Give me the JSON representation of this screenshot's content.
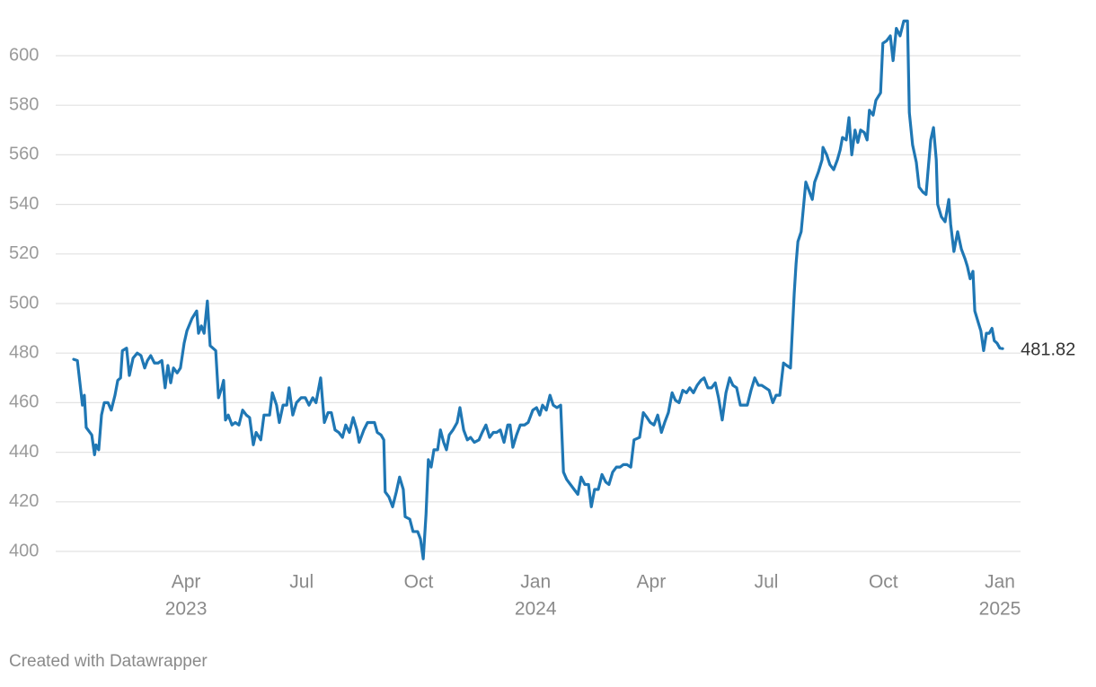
{
  "chart_data": {
    "type": "line",
    "x": [
      2023.005,
      2023.013,
      2023.024,
      2023.028,
      2023.032,
      2023.044,
      2023.05,
      2023.053,
      2023.059,
      2023.065,
      2023.071,
      2023.079,
      2023.086,
      2023.094,
      2023.1,
      2023.106,
      2023.11,
      2023.119,
      2023.125,
      2023.133,
      2023.142,
      2023.15,
      2023.158,
      2023.164,
      2023.171,
      2023.179,
      2023.187,
      2023.195,
      2023.202,
      2023.208,
      2023.214,
      2023.22,
      2023.228,
      2023.235,
      2023.243,
      2023.249,
      2023.26,
      2023.27,
      2023.274,
      2023.28,
      2023.286,
      2023.293,
      2023.299,
      2023.311,
      2023.317,
      2023.324,
      2023.328,
      2023.332,
      2023.338,
      2023.346,
      2023.353,
      2023.361,
      2023.369,
      2023.377,
      2023.384,
      2023.392,
      2023.398,
      2023.408,
      2023.415,
      2023.427,
      2023.433,
      2023.442,
      2023.448,
      2023.456,
      2023.464,
      2023.469,
      2023.477,
      2023.485,
      2023.495,
      2023.504,
      2023.512,
      2023.52,
      2023.527,
      2023.537,
      2023.545,
      2023.553,
      2023.56,
      2023.568,
      2023.576,
      2023.584,
      2023.591,
      2023.599,
      2023.607,
      2023.615,
      2023.62,
      2023.63,
      2023.638,
      2023.646,
      2023.653,
      2023.659,
      2023.667,
      2023.673,
      2023.676,
      2023.684,
      2023.692,
      2023.7,
      2023.707,
      2023.715,
      2023.719,
      2023.729,
      2023.736,
      2023.746,
      2023.752,
      2023.758,
      2023.764,
      2023.769,
      2023.775,
      2023.781,
      2023.789,
      2023.795,
      2023.802,
      2023.808,
      2023.814,
      2023.822,
      2023.831,
      2023.837,
      2023.845,
      2023.853,
      2023.86,
      2023.868,
      2023.878,
      2023.885,
      2023.893,
      2023.901,
      2023.909,
      2023.916,
      2023.924,
      2023.932,
      2023.94,
      2023.945,
      2023.951,
      2023.959,
      2023.967,
      2023.976,
      2023.984,
      2023.994,
      2024.002,
      2024.009,
      2024.015,
      2024.023,
      2024.031,
      2024.038,
      2024.046,
      2024.054,
      2024.06,
      2024.067,
      2024.075,
      2024.083,
      2024.091,
      2024.098,
      2024.106,
      2024.114,
      2024.12,
      2024.127,
      2024.135,
      2024.143,
      2024.151,
      2024.158,
      2024.166,
      2024.174,
      2024.182,
      2024.189,
      2024.197,
      2024.205,
      2024.212,
      2024.224,
      2024.232,
      2024.24,
      2024.247,
      2024.255,
      2024.263,
      2024.271,
      2024.278,
      2024.286,
      2024.294,
      2024.301,
      2024.309,
      2024.317,
      2024.325,
      2024.332,
      2024.34,
      2024.348,
      2024.356,
      2024.363,
      2024.371,
      2024.379,
      2024.387,
      2024.394,
      2024.402,
      2024.41,
      2024.418,
      2024.425,
      2024.433,
      2024.441,
      2024.449,
      2024.456,
      2024.464,
      2024.472,
      2024.48,
      2024.487,
      2024.495,
      2024.503,
      2024.511,
      2024.518,
      2024.526,
      2024.534,
      2024.541,
      2024.549,
      2024.557,
      2024.561,
      2024.565,
      2024.572,
      2024.576,
      2024.582,
      2024.588,
      2024.596,
      2024.601,
      2024.609,
      2024.617,
      2024.619,
      2024.627,
      2024.634,
      2024.642,
      2024.65,
      2024.656,
      2024.661,
      2024.669,
      2024.675,
      2024.681,
      2024.688,
      2024.694,
      2024.7,
      2024.708,
      2024.714,
      2024.719,
      2024.727,
      2024.733,
      2024.743,
      2024.748,
      2024.756,
      2024.764,
      2024.77,
      2024.777,
      2024.785,
      2024.793,
      2024.801,
      2024.805,
      2024.812,
      2024.82,
      2024.826,
      2024.834,
      2024.841,
      2024.845,
      2024.851,
      2024.857,
      2024.863,
      2024.866,
      2024.874,
      2024.882,
      2024.89,
      2024.894,
      2024.901,
      2024.909,
      2024.917,
      2024.925,
      2024.93,
      2024.936,
      2024.942,
      2024.946,
      2024.954,
      2024.959,
      2024.965,
      2024.971,
      2024.977,
      2024.983,
      2024.988,
      2024.994,
      2025.0,
      2025.006
    ],
    "series": [
      {
        "color": "#1f77b4",
        "values": [
          477.5,
          477,
          459,
          463,
          450,
          447,
          439,
          443,
          441,
          455,
          460,
          460,
          457,
          463,
          469,
          470,
          481,
          482,
          471,
          478,
          480,
          479,
          474,
          477,
          479,
          476,
          476,
          477,
          466,
          475,
          468,
          474,
          472,
          474,
          484,
          489,
          494,
          497,
          488,
          491,
          488,
          501,
          483,
          481,
          462,
          466,
          469,
          453,
          455,
          451,
          452,
          451,
          457,
          455,
          454,
          443,
          448,
          445,
          455,
          455,
          464,
          459,
          452,
          459,
          459,
          466,
          455,
          460,
          462,
          462,
          459,
          462,
          460,
          470,
          452,
          456,
          456,
          449,
          448,
          446,
          451,
          448,
          454,
          449,
          444,
          449,
          452,
          452,
          452,
          448,
          447,
          445,
          424,
          422,
          418,
          424,
          430,
          425,
          414,
          413,
          408,
          408,
          405,
          397,
          415,
          437,
          434,
          441,
          441,
          449,
          444,
          441,
          447,
          449,
          452,
          458,
          449,
          445,
          446,
          444,
          445,
          448,
          451,
          446,
          448,
          448,
          449,
          444,
          451,
          451,
          442,
          447,
          451,
          451,
          452,
          457,
          458,
          455,
          459,
          457,
          463,
          459,
          458,
          459,
          432,
          429,
          427,
          425,
          423,
          430,
          427,
          427,
          418,
          425,
          425,
          431,
          428,
          427,
          432,
          434,
          434,
          435,
          435,
          434,
          445,
          446,
          456,
          454,
          452,
          451,
          455,
          448,
          452,
          456,
          464,
          461,
          460,
          465,
          464,
          466,
          464,
          467,
          469,
          470,
          466,
          466,
          468,
          462,
          453,
          464,
          470,
          467,
          466,
          459,
          459,
          459,
          465,
          470,
          467,
          467,
          466,
          465,
          460,
          463,
          463,
          476,
          475,
          474,
          504,
          516,
          525,
          529,
          537,
          549,
          546,
          542,
          549,
          553,
          558,
          563,
          560,
          556,
          554,
          558,
          562,
          567,
          566,
          575,
          560,
          570,
          565,
          570,
          569,
          566,
          578,
          576,
          582,
          585,
          605,
          606,
          608,
          598,
          611,
          608,
          614,
          614,
          577,
          564,
          557,
          547,
          545,
          544,
          553,
          566,
          571,
          558,
          540,
          535,
          533,
          542,
          532,
          521,
          529,
          522,
          518,
          515,
          510,
          513,
          497,
          492,
          489,
          481,
          488,
          488,
          490,
          485,
          484,
          482,
          481.82
        ]
      }
    ],
    "xlim": [
      2023.0,
      2025.0
    ],
    "xticks": [
      {
        "value": 2023.247,
        "label": "Apr",
        "year": "2023"
      },
      {
        "value": 2023.496,
        "label": "Jul"
      },
      {
        "value": 2023.748,
        "label": "Oct"
      },
      {
        "value": 2024.0,
        "label": "Jan",
        "year": "2024"
      },
      {
        "value": 2024.249,
        "label": "Apr"
      },
      {
        "value": 2024.497,
        "label": "Jul"
      },
      {
        "value": 2024.749,
        "label": "Oct"
      },
      {
        "value": 2025.0,
        "label": "Jan",
        "year": "2025"
      }
    ],
    "ylim": [
      395,
      615
    ],
    "yticks": [
      400,
      420,
      440,
      460,
      480,
      500,
      520,
      540,
      560,
      580,
      600
    ],
    "grid": true,
    "footer": "Created with Datawrapper"
  }
}
